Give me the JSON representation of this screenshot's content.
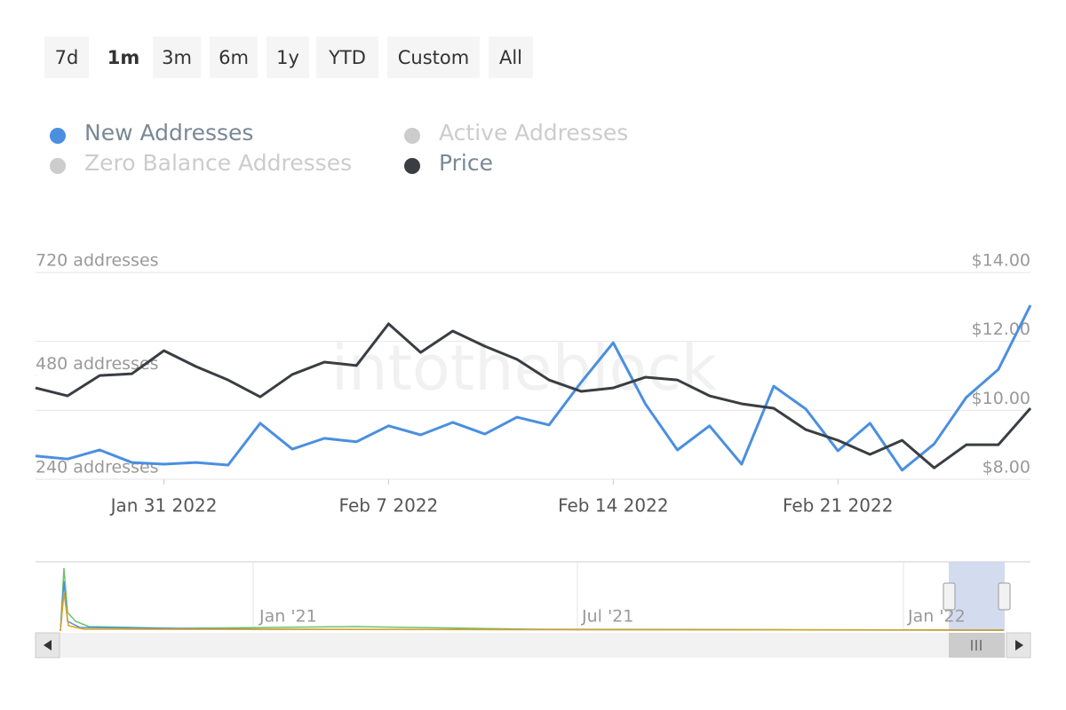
{
  "range_buttons": [
    "7d",
    "1m",
    "3m",
    "6m",
    "1y",
    "YTD",
    "Custom",
    "All"
  ],
  "selected_range": "1m",
  "chart_data": {
    "type": "line",
    "watermark": "intotheblock",
    "x": [
      "2022-01-27",
      "2022-01-28",
      "2022-01-29",
      "2022-01-30",
      "2022-01-31",
      "2022-02-01",
      "2022-02-02",
      "2022-02-03",
      "2022-02-04",
      "2022-02-05",
      "2022-02-06",
      "2022-02-07",
      "2022-02-08",
      "2022-02-09",
      "2022-02-10",
      "2022-02-11",
      "2022-02-12",
      "2022-02-13",
      "2022-02-14",
      "2022-02-15",
      "2022-02-16",
      "2022-02-17",
      "2022-02-18",
      "2022-02-19",
      "2022-02-20",
      "2022-02-21",
      "2022-02-22",
      "2022-02-23",
      "2022-02-24",
      "2022-02-25",
      "2022-02-26",
      "2022-02-27"
    ],
    "xlim": [
      "2022-01-27",
      "2022-02-27"
    ],
    "xticks": [
      {
        "value": "2022-01-31",
        "label": "Jan 31 2022"
      },
      {
        "value": "2022-02-07",
        "label": "Feb 7 2022"
      },
      {
        "value": "2022-02-14",
        "label": "Feb 14 2022"
      },
      {
        "value": "2022-02-21",
        "label": "Feb 21 2022"
      }
    ],
    "ylim": [
      240,
      720
    ],
    "yticks": [
      {
        "value": 240,
        "label": "240 addresses"
      },
      {
        "value": 480,
        "label": "480 addresses"
      },
      {
        "value": 720,
        "label": "720 addresses"
      }
    ],
    "y2lim": [
      8,
      14
    ],
    "y2ticks": [
      {
        "value": 8,
        "label": "$8.00"
      },
      {
        "value": 10,
        "label": "$10.00"
      },
      {
        "value": 12,
        "label": "$12.00"
      },
      {
        "value": 14,
        "label": "$14.00"
      }
    ],
    "grid": true,
    "series": [
      {
        "name": "New Addresses",
        "color": "#4a8fe0",
        "visible": true,
        "values": [
          294,
          287,
          308,
          279,
          275,
          279,
          273,
          370,
          310,
          335,
          327,
          364,
          343,
          372,
          345,
          384,
          366,
          465,
          557,
          415,
          308,
          364,
          275,
          456,
          403,
          306,
          370,
          261,
          322,
          430,
          495,
          644
        ]
      },
      {
        "name": "Active Addresses",
        "color": "#cccccc",
        "visible": false
      },
      {
        "name": "Zero Balance Addresses",
        "color": "#cccccc",
        "visible": false
      },
      {
        "name": "Price",
        "color": "#3a3d42",
        "visible": true,
        "axis": "y2",
        "values": [
          10.65,
          10.42,
          11.01,
          11.06,
          11.73,
          11.27,
          10.88,
          10.39,
          11.04,
          11.4,
          11.3,
          12.51,
          11.68,
          12.3,
          11.86,
          11.48,
          10.88,
          10.55,
          10.65,
          10.96,
          10.88,
          10.42,
          10.19,
          10.06,
          9.44,
          9.13,
          8.72,
          9.13,
          8.33,
          9.0,
          9.0,
          10.06
        ]
      }
    ],
    "navigator_labels": [
      "Jan '21",
      "Jul '21",
      "Jan '22"
    ]
  }
}
